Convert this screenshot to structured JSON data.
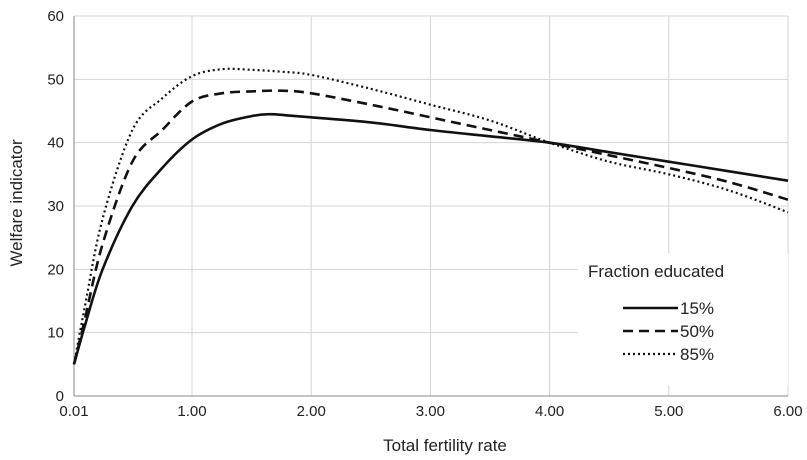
{
  "chart_data": {
    "type": "line",
    "xlabel": "Total fertility rate",
    "ylabel": "Welfare indicator",
    "x_categories": [
      "0.01",
      "1.00",
      "2.00",
      "3.00",
      "4.00",
      "5.00",
      "6.00"
    ],
    "xlim": [
      0.01,
      6.0
    ],
    "ylim": [
      0,
      60
    ],
    "y_ticks": [
      0,
      10,
      20,
      30,
      40,
      50,
      60
    ],
    "grid": true,
    "legend": {
      "title": "Fraction educated",
      "placement": "lower-right"
    },
    "series": [
      {
        "name": "15%",
        "style": "solid",
        "x": [
          0.01,
          0.1,
          0.25,
          0.5,
          0.75,
          1.0,
          1.25,
          1.5,
          1.65,
          1.8,
          2.0,
          2.5,
          3.0,
          3.5,
          4.0,
          4.5,
          5.0,
          5.5,
          6.0
        ],
        "y": [
          5,
          11,
          20,
          30,
          36,
          40.5,
          43,
          44.2,
          44.5,
          44.3,
          44,
          43.2,
          42,
          41,
          40,
          38.5,
          37,
          35.5,
          34
        ]
      },
      {
        "name": "50%",
        "style": "dashed",
        "x": [
          0.01,
          0.1,
          0.25,
          0.5,
          0.75,
          1.0,
          1.25,
          1.5,
          1.75,
          2.0,
          2.5,
          3.0,
          3.5,
          4.0,
          4.5,
          5.0,
          5.5,
          6.0
        ],
        "y": [
          5,
          12,
          24,
          37,
          42,
          46.5,
          47.8,
          48.1,
          48.2,
          47.8,
          46,
          44,
          42,
          40,
          38,
          36,
          33.8,
          31
        ]
      },
      {
        "name": "85%",
        "style": "dotted",
        "x": [
          0.01,
          0.1,
          0.25,
          0.5,
          0.75,
          1.0,
          1.25,
          1.5,
          1.75,
          2.0,
          2.5,
          3.0,
          3.5,
          4.0,
          4.5,
          5.0,
          5.5,
          6.0
        ],
        "y": [
          5,
          14,
          28,
          42,
          47,
          50.5,
          51.6,
          51.5,
          51.2,
          50.7,
          48.5,
          46,
          43.5,
          40,
          37,
          35,
          32.5,
          29
        ]
      }
    ]
  }
}
